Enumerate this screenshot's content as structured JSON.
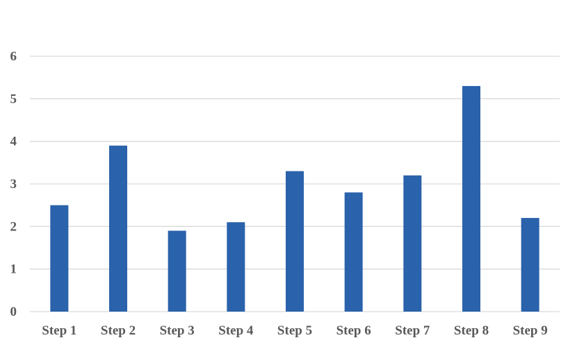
{
  "chart_data": {
    "type": "bar",
    "categories": [
      "Step 1",
      "Step 2",
      "Step 3",
      "Step 4",
      "Step 5",
      "Step 6",
      "Step 7",
      "Step 8",
      "Step 9"
    ],
    "values": [
      2.5,
      3.9,
      1.9,
      2.1,
      3.3,
      2.8,
      3.2,
      5.3,
      2.2
    ],
    "y_ticks": [
      "0",
      "1",
      "2",
      "3",
      "4",
      "5",
      "6"
    ],
    "ylim": [
      0,
      6
    ],
    "title": "",
    "xlabel": "",
    "ylabel": "",
    "grid": true,
    "legend": "none",
    "bar_color": "#2a62ab"
  }
}
